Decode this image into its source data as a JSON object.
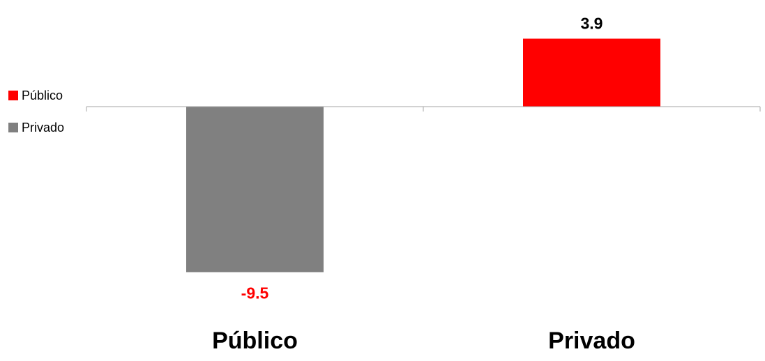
{
  "chart_data": {
    "type": "bar",
    "categories": [
      "Público",
      "Privado"
    ],
    "values": [
      -9.5,
      3.9
    ],
    "data_labels": [
      "-9.5",
      "3.9"
    ],
    "bar_colors": [
      "#808080",
      "#ff0000"
    ],
    "label_colors": [
      "#ff0000",
      "#000000"
    ],
    "legend": {
      "position": "left",
      "items": [
        {
          "label": "Público",
          "color": "#ff0000"
        },
        {
          "label": "Privado",
          "color": "#808080"
        }
      ]
    },
    "grid": false
  }
}
